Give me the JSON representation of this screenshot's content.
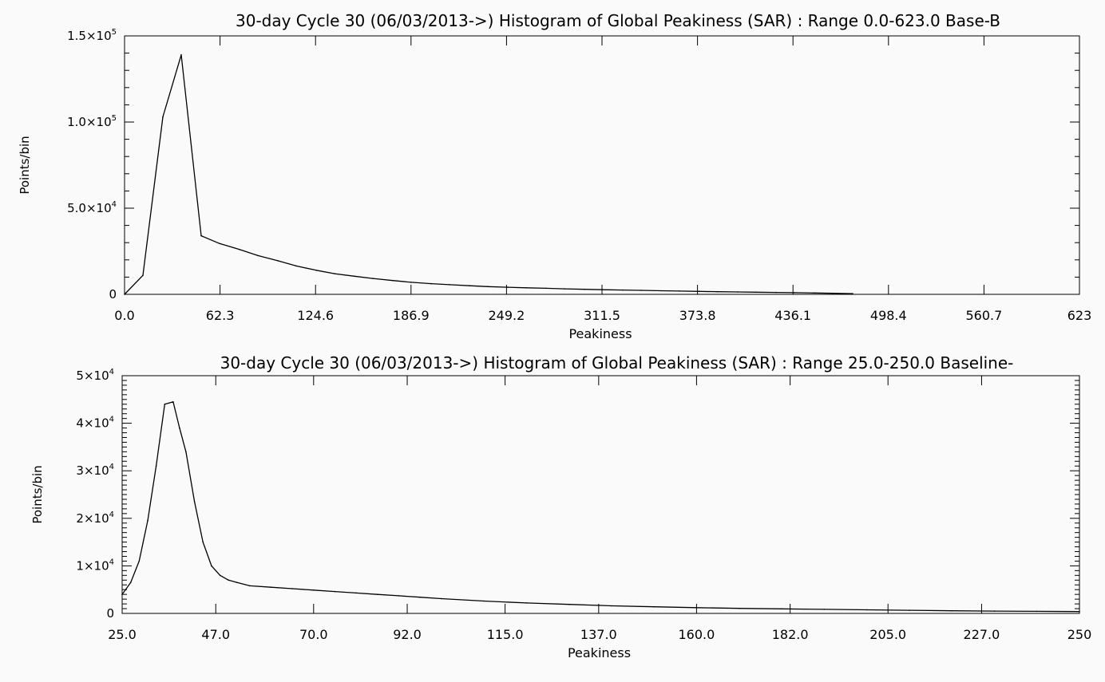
{
  "chart_data": [
    {
      "type": "line",
      "title": "30-day Cycle 30 (06/03/2013->) Histogram of Global Peakiness (SAR) :  Range 0.0-623.0 Base-B",
      "xlabel": "Peakiness",
      "ylabel": "Points/bin",
      "xlim": [
        0,
        623
      ],
      "ylim": [
        0,
        150000
      ],
      "x_ticks": [
        0.0,
        62.3,
        124.6,
        186.9,
        249.2,
        311.5,
        373.8,
        436.1,
        498.4,
        560.7,
        623
      ],
      "x_tick_labels": [
        "0.0",
        "62.3",
        "124.6",
        "186.9",
        "249.2",
        "311.5",
        "373.8",
        "436.1",
        "498.4",
        "560.7",
        "623"
      ],
      "y_ticks": [
        0,
        50000,
        100000,
        150000
      ],
      "y_tick_labels": [
        {
          "base": "0",
          "exp": ""
        },
        {
          "base": "5.0×10",
          "exp": "4"
        },
        {
          "base": "1.0×10",
          "exp": "5"
        },
        {
          "base": "1.5×10",
          "exp": "5"
        }
      ],
      "y_minor_per_major": 5,
      "x_minor_per_major": 0,
      "grid": false,
      "series": [
        {
          "x": [
            0,
            12,
            25,
            37,
            50,
            62,
            75,
            87,
            100,
            112,
            125,
            137,
            150,
            162,
            175,
            187,
            200,
            212,
            225,
            237,
            250,
            262,
            275,
            287,
            300,
            312,
            325,
            337,
            350,
            362,
            375,
            387,
            400,
            412,
            425,
            437,
            450,
            462,
            475
          ],
          "y": [
            0,
            11000,
            103000,
            139000,
            34000,
            29500,
            26000,
            22500,
            19500,
            16500,
            14000,
            12000,
            10500,
            9200,
            8000,
            7000,
            6200,
            5600,
            5000,
            4500,
            4100,
            3800,
            3500,
            3200,
            2900,
            2700,
            2500,
            2300,
            2100,
            1900,
            1700,
            1550,
            1400,
            1250,
            1100,
            950,
            800,
            600,
            400
          ]
        }
      ]
    },
    {
      "type": "line",
      "title": "30-day Cycle 30 (06/03/2013->) Histogram of Global Peakiness (SAR) :  Range 25.0-250.0 Baseline-",
      "xlabel": "Peakiness",
      "ylabel": "Points/bin",
      "xlim": [
        25,
        250
      ],
      "ylim": [
        0,
        50000
      ],
      "x_ticks": [
        25,
        47,
        70,
        92,
        115,
        137,
        160,
        182,
        205,
        227,
        250
      ],
      "x_tick_labels": [
        "25.0",
        "47.0",
        "70.0",
        "92.0",
        "115.0",
        "137.0",
        "160.0",
        "182.0",
        "205.0",
        "227.0",
        "250"
      ],
      "y_ticks": [
        0,
        10000,
        20000,
        30000,
        40000,
        50000
      ],
      "y_tick_labels": [
        {
          "base": "0",
          "exp": ""
        },
        {
          "base": "1×10",
          "exp": "4"
        },
        {
          "base": "2×10",
          "exp": "4"
        },
        {
          "base": "3×10",
          "exp": "4"
        },
        {
          "base": "4×10",
          "exp": "4"
        },
        {
          "base": "5×10",
          "exp": "4"
        }
      ],
      "y_minor_per_major": 10,
      "x_minor_per_major": 0,
      "grid": false,
      "series": [
        {
          "x": [
            25,
            27,
            29,
            31,
            33,
            35,
            37,
            38.5,
            40,
            42,
            44,
            46,
            48,
            50,
            52,
            55,
            60,
            65,
            70,
            75,
            80,
            85,
            90,
            95,
            100,
            110,
            120,
            130,
            140,
            150,
            160,
            170,
            180,
            190,
            200,
            210,
            220,
            230,
            240,
            250
          ],
          "y": [
            4000,
            6500,
            11000,
            19500,
            31000,
            44000,
            44500,
            39000,
            34000,
            23500,
            15000,
            10000,
            8000,
            7000,
            6500,
            5800,
            5500,
            5200,
            4900,
            4600,
            4300,
            4000,
            3700,
            3400,
            3100,
            2600,
            2200,
            1900,
            1600,
            1400,
            1200,
            1050,
            950,
            850,
            750,
            650,
            550,
            480,
            430,
            380
          ]
        }
      ]
    }
  ]
}
